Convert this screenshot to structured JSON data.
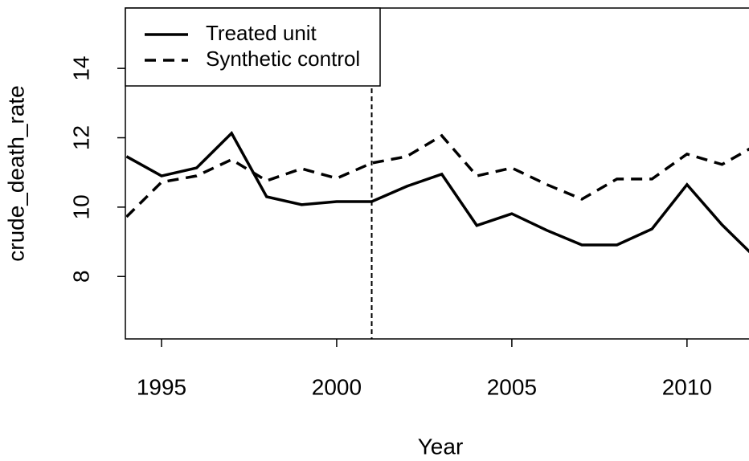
{
  "chart_data": {
    "type": "line",
    "x_label": "Year",
    "y_label": "crude_death_rate",
    "x": [
      1994,
      1995,
      1996,
      1997,
      1998,
      1999,
      2000,
      2001,
      2002,
      2003,
      2004,
      2005,
      2006,
      2007,
      2008,
      2009,
      2010,
      2011,
      2012
    ],
    "series": [
      {
        "name": "Treated unit",
        "color": "#000000",
        "dash": "solid",
        "values": [
          11.46,
          10.9,
          11.13,
          12.13,
          10.3,
          10.07,
          10.16,
          10.16,
          10.6,
          10.95,
          9.47,
          9.81,
          9.33,
          8.91,
          8.91,
          9.37,
          10.65,
          9.49,
          8.5
        ]
      },
      {
        "name": "Synthetic control",
        "color": "#000000",
        "dash": "dashed",
        "values": [
          9.72,
          10.72,
          10.9,
          11.37,
          10.76,
          11.11,
          10.83,
          11.27,
          11.46,
          12.06,
          10.9,
          11.13,
          10.65,
          10.23,
          10.81,
          10.81,
          11.53,
          11.23,
          11.8
        ]
      }
    ],
    "vlines": [
      2001
    ],
    "xlim": [
      1994,
      2011.77
    ],
    "xticks": [
      1995,
      2000,
      2005,
      2010
    ],
    "ylim": [
      6.2,
      15.74
    ],
    "yticks": [
      8,
      10,
      12,
      14
    ],
    "legend": "top-left"
  }
}
